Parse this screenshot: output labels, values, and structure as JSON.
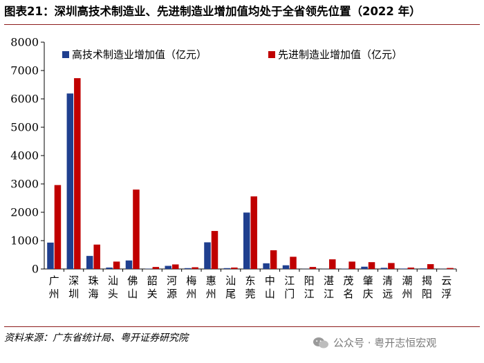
{
  "title": "图表21：深圳高技术制造业、先进制造业增加值均处于全省领先位置（2022 年）",
  "source": "资料来源：广东省统计局、粤开证券研究院",
  "watermark": {
    "text": "公众号 · 粤开志恒宏观",
    "icon": "wechat-icon"
  },
  "chart_data": {
    "type": "bar",
    "categories": [
      "广州",
      "深圳",
      "珠海",
      "汕头",
      "佛山",
      "韶关",
      "河源",
      "梅州",
      "惠州",
      "汕尾",
      "东莞",
      "中山",
      "江门",
      "阳江",
      "湛江",
      "茂名",
      "肇庆",
      "清远",
      "潮州",
      "揭阳",
      "云浮"
    ],
    "series": [
      {
        "name": "高技术制造业增加值（亿元）",
        "color": "#1f3f8f",
        "values": [
          930,
          6190,
          460,
          50,
          300,
          10,
          110,
          30,
          940,
          30,
          1990,
          200,
          130,
          5,
          5,
          10,
          80,
          40,
          15,
          20,
          5
        ]
      },
      {
        "name": "先进制造业增加值（亿元）",
        "color": "#c00000",
        "values": [
          2960,
          6730,
          860,
          260,
          2800,
          70,
          160,
          60,
          1340,
          50,
          2560,
          660,
          430,
          70,
          340,
          260,
          240,
          210,
          50,
          170,
          35
        ]
      }
    ],
    "ylim": [
      0,
      8000
    ],
    "yticks": [
      0,
      1000,
      2000,
      3000,
      4000,
      5000,
      6000,
      7000,
      8000
    ],
    "grid": false,
    "legend": "top"
  }
}
